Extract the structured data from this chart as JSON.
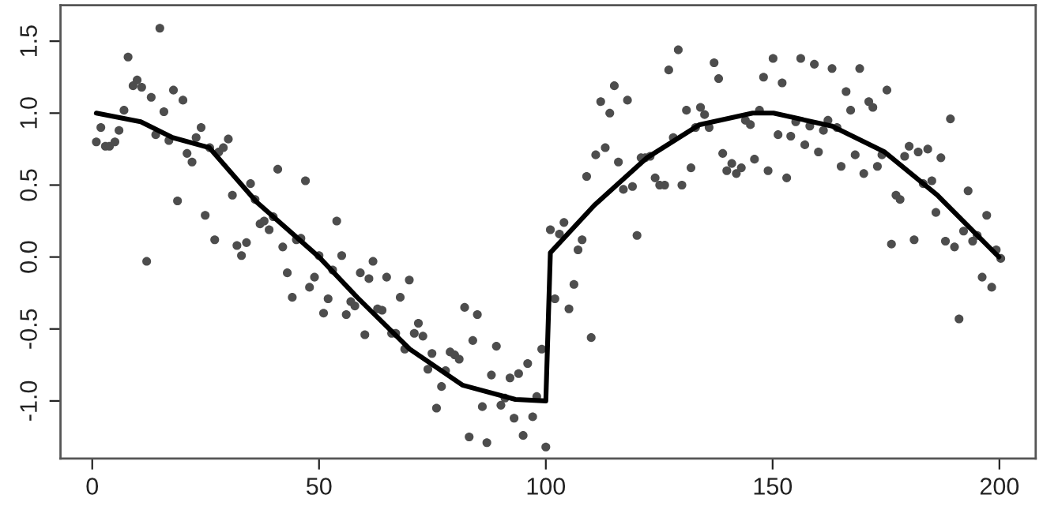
{
  "chart_data": {
    "type": "scatter",
    "xlim": [
      -7,
      208
    ],
    "ylim": [
      -1.4,
      1.75
    ],
    "xticks": [
      0,
      50,
      100,
      150,
      200
    ],
    "yticks": [
      {
        "value": -1,
        "label": "-1.0"
      },
      -0.5,
      {
        "value": 0,
        "label": "0.0"
      },
      0.5,
      {
        "value": 1,
        "label": "1.0"
      },
      1.5
    ],
    "grid": false,
    "series": [
      {
        "marker": "circle",
        "color": "#4d4d4d",
        "x": [
          0.9,
          1.9,
          2.9,
          3.8,
          5.0,
          5.9,
          7.0,
          7.9,
          9.0,
          9.9,
          10.9,
          12.0,
          13.0,
          14.0,
          14.9,
          15.8,
          16.9,
          17.9,
          18.8,
          20.0,
          20.9,
          22.0,
          22.9,
          24.0,
          24.9,
          25.9,
          27.0,
          27.9,
          28.9,
          30.0,
          30.9,
          31.9,
          32.9,
          34.0,
          34.9,
          35.9,
          37.0,
          37.9,
          39.0,
          39.9,
          40.9,
          42.0,
          43.0,
          44.1,
          45.0,
          46.0,
          47.0,
          47.9,
          49.0,
          50.0,
          51.0,
          52.0,
          53.0,
          53.9,
          55.0,
          56.0,
          57.0,
          57.9,
          59.1,
          60.1,
          61.0,
          61.9,
          62.9,
          63.9,
          64.9,
          66.0,
          66.9,
          67.9,
          68.9,
          69.9,
          71.0,
          71.9,
          72.9,
          74.0,
          74.9,
          75.9,
          77.0,
          77.9,
          78.9,
          79.9,
          80.9,
          82.1,
          83.1,
          83.9,
          84.9,
          86.0,
          87.0,
          88.0,
          89.1,
          90.1,
          91.0,
          92.1,
          93.0,
          94.0,
          95.0,
          96.0,
          97.1,
          98.0,
          99.1,
          100.0,
          101.0,
          102.0,
          103.0,
          104.0,
          105.1,
          106.2,
          107.1,
          108.0,
          109.0,
          110.0,
          111.0,
          112.1,
          113.1,
          114.1,
          115.1,
          116.0,
          117.1,
          118.0,
          119.1,
          120.1,
          121.0,
          121.9,
          123.0,
          124.1,
          125.1,
          126.2,
          127.1,
          128.1,
          129.2,
          130.0,
          131.0,
          132.0,
          133.0,
          134.1,
          135.0,
          136.0,
          137.1,
          138.1,
          139.0,
          139.9,
          141.0,
          142.0,
          143.1,
          144.0,
          145.1,
          146.0,
          147.1,
          148.0,
          149.0,
          150.1,
          151.2,
          152.1,
          153.1,
          154.0,
          155.1,
          156.2,
          157.1,
          158.2,
          159.2,
          160.1,
          161.2,
          162.2,
          163.1,
          164.2,
          165.1,
          166.2,
          167.2,
          168.2,
          169.2,
          170.1,
          171.2,
          172.1,
          173.1,
          174.1,
          175.2,
          176.2,
          177.2,
          178.1,
          179.1,
          180.1,
          181.2,
          182.1,
          183.2,
          184.2,
          185.1,
          186.0,
          187.1,
          188.1,
          189.2,
          190.1,
          191.1,
          192.1,
          193.1,
          194.1,
          195.1,
          196.2,
          197.2,
          198.3,
          199.3,
          200.3
        ],
        "values": [
          0.8,
          0.9,
          0.77,
          0.77,
          0.8,
          0.88,
          1.02,
          1.39,
          1.19,
          1.23,
          1.18,
          -0.03,
          1.11,
          0.85,
          1.59,
          1.01,
          0.81,
          1.16,
          0.39,
          1.09,
          0.72,
          0.66,
          0.83,
          0.9,
          0.29,
          0.76,
          0.12,
          0.73,
          0.76,
          0.82,
          0.43,
          0.08,
          0.01,
          0.1,
          0.51,
          0.4,
          0.23,
          0.25,
          0.19,
          0.28,
          0.61,
          0.07,
          -0.11,
          -0.28,
          0.12,
          0.13,
          0.53,
          -0.21,
          -0.14,
          0.01,
          -0.39,
          -0.29,
          -0.09,
          0.25,
          0.01,
          -0.4,
          -0.31,
          -0.34,
          -0.11,
          -0.54,
          -0.15,
          -0.03,
          -0.36,
          -0.37,
          -0.14,
          -0.53,
          -0.53,
          -0.28,
          -0.64,
          -0.16,
          -0.53,
          -0.46,
          -0.55,
          -0.78,
          -0.67,
          -1.05,
          -0.9,
          -0.79,
          -0.66,
          -0.68,
          -0.71,
          -0.35,
          -1.25,
          -0.58,
          -0.4,
          -1.04,
          -1.29,
          -0.82,
          -0.62,
          -1.03,
          -0.98,
          -0.84,
          -1.12,
          -0.81,
          -1.24,
          -0.74,
          -1.11,
          -0.97,
          -0.64,
          -1.32,
          0.19,
          -0.29,
          0.16,
          0.24,
          -0.36,
          -0.19,
          0.05,
          0.12,
          0.56,
          -0.56,
          0.71,
          1.08,
          0.76,
          1.0,
          1.19,
          0.66,
          0.47,
          1.09,
          0.49,
          0.15,
          0.69,
          0.69,
          0.7,
          0.55,
          0.5,
          0.5,
          1.3,
          0.83,
          1.44,
          0.5,
          1.02,
          0.62,
          0.9,
          1.04,
          0.99,
          0.9,
          1.35,
          1.24,
          0.72,
          0.6,
          0.65,
          0.58,
          0.62,
          0.95,
          0.92,
          0.68,
          1.02,
          1.25,
          0.6,
          1.38,
          0.85,
          1.21,
          0.55,
          0.84,
          0.94,
          1.38,
          0.78,
          0.91,
          1.34,
          0.73,
          0.88,
          0.95,
          1.31,
          0.9,
          0.63,
          1.15,
          1.02,
          0.71,
          1.31,
          0.58,
          1.08,
          1.04,
          0.63,
          0.71,
          1.16,
          0.09,
          0.43,
          0.4,
          0.7,
          0.77,
          0.12,
          0.73,
          0.51,
          0.75,
          0.53,
          0.31,
          0.69,
          0.11,
          0.96,
          0.07,
          -0.43,
          0.18,
          0.46,
          0.11,
          0.15,
          -0.14,
          0.29,
          -0.21,
          0.05,
          -0.01
        ]
      },
      {
        "type": "line",
        "marker": "none",
        "color": "#000000",
        "x": [
          0.9,
          10.7,
          17.7,
          25.8,
          36.3,
          50.0,
          58.4,
          70.0,
          81.6,
          93.3,
          100.0,
          101.0,
          110.7,
          122.3,
          133.9,
          145.6,
          150.2,
          163.1,
          174.7,
          186.3,
          199.9
        ],
        "values": [
          1.0,
          0.94,
          0.83,
          0.76,
          0.38,
          0.0,
          -0.28,
          -0.64,
          -0.89,
          -0.99,
          -1.0,
          0.03,
          0.36,
          0.69,
          0.92,
          1.0,
          1.0,
          0.91,
          0.73,
          0.43,
          0.0
        ]
      }
    ]
  }
}
